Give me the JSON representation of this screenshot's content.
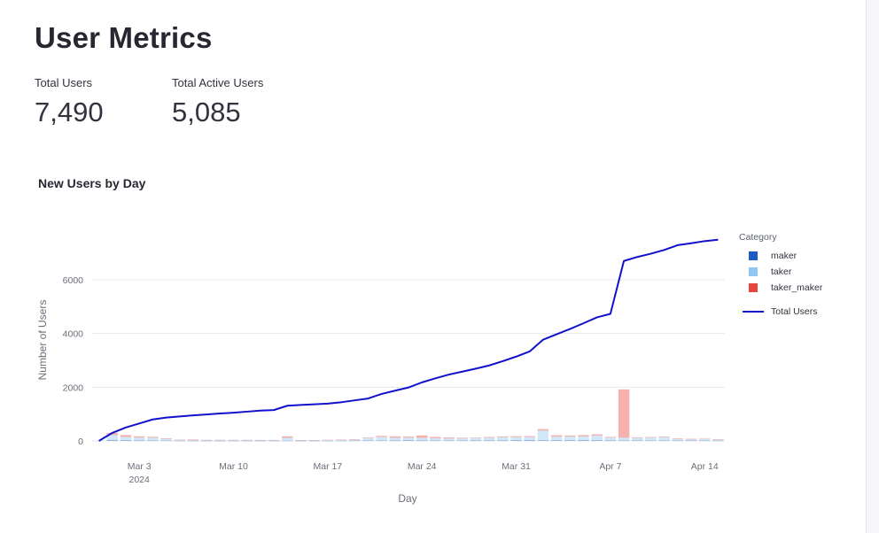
{
  "page": {
    "title": "User Metrics"
  },
  "metrics": [
    {
      "label": "Total Users",
      "value": "7,490"
    },
    {
      "label": "Total Active Users",
      "value": "5,085"
    }
  ],
  "colors": {
    "maker": "#1a5bc4",
    "taker": "#8ec7f4",
    "taker_maker": "#e8453c",
    "total_line": "#1111cc",
    "grid": "#e8e8ec",
    "axis_text": "#6b6e7a"
  },
  "chart_data": {
    "type": "bar",
    "title": "New Users by Day",
    "xlabel": "Day",
    "ylabel": "Number of Users",
    "ylim": [
      0,
      7600
    ],
    "yticks": [
      0,
      2000,
      4000,
      6000
    ],
    "ytick_labels": [
      "0",
      "2000",
      "4000",
      "6000"
    ],
    "x_tick_day_index": [
      3,
      10,
      17,
      24,
      31,
      38,
      45
    ],
    "x_tick_labels": [
      "Mar 3",
      "Mar 10",
      "Mar 17",
      "Mar 24",
      "Mar 31",
      "Apr 7",
      "Apr 14"
    ],
    "x_year_label": "2024",
    "x_range_days": [
      -0.5,
      46.5
    ],
    "days": [
      1,
      2,
      3,
      4,
      5,
      6,
      7,
      8,
      9,
      10,
      11,
      12,
      13,
      14,
      15,
      16,
      17,
      18,
      19,
      20,
      21,
      22,
      23,
      24,
      25,
      26,
      27,
      28,
      29,
      30,
      31,
      32,
      33,
      34,
      35,
      36,
      37,
      38,
      39,
      40,
      41,
      42,
      43,
      44,
      45,
      46
    ],
    "legend_title": "Category",
    "series": [
      {
        "name": "maker",
        "values": [
          40,
          30,
          25,
          20,
          15,
          8,
          8,
          8,
          8,
          8,
          8,
          8,
          8,
          10,
          8,
          8,
          8,
          10,
          15,
          20,
          20,
          25,
          30,
          25,
          20,
          20,
          20,
          25,
          25,
          25,
          30,
          35,
          30,
          30,
          30,
          35,
          30,
          25,
          20,
          20,
          20,
          20,
          15,
          15,
          15,
          10
        ]
      },
      {
        "name": "taker",
        "values": [
          180,
          120,
          100,
          100,
          60,
          25,
          15,
          20,
          20,
          20,
          20,
          15,
          15,
          100,
          10,
          10,
          20,
          25,
          30,
          80,
          130,
          90,
          90,
          90,
          80,
          70,
          70,
          80,
          90,
          110,
          110,
          110,
          350,
          130,
          130,
          130,
          170,
          100,
          100,
          90,
          100,
          120,
          50,
          40,
          50,
          35
        ]
      },
      {
        "name": "taker_maker",
        "values": [
          80,
          70,
          45,
          35,
          25,
          15,
          30,
          12,
          12,
          12,
          12,
          12,
          12,
          60,
          15,
          10,
          15,
          15,
          20,
          25,
          40,
          55,
          40,
          90,
          50,
          40,
          30,
          20,
          30,
          30,
          35,
          35,
          60,
          50,
          40,
          50,
          45,
          25,
          1800,
          25,
          25,
          25,
          25,
          25,
          20,
          20
        ]
      },
      {
        "name": "Total Users",
        "type": "line",
        "values": [
          300,
          500,
          650,
          800,
          870,
          910,
          950,
          985,
          1020,
          1050,
          1090,
          1130,
          1150,
          1310,
          1340,
          1365,
          1390,
          1440,
          1510,
          1580,
          1750,
          1870,
          1990,
          2180,
          2330,
          2470,
          2580,
          2690,
          2810,
          2970,
          3140,
          3330,
          3770,
          3970,
          4170,
          4380,
          4600,
          4730,
          6700,
          6850,
          6970,
          7110,
          7290,
          7360,
          7440,
          7490
        ]
      }
    ]
  }
}
